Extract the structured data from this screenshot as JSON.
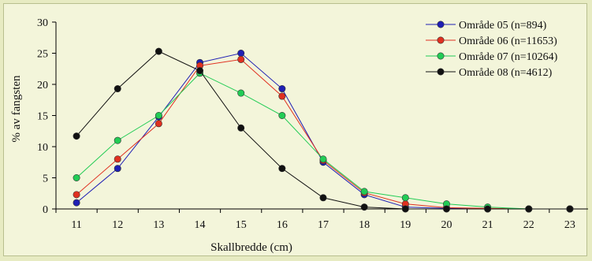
{
  "chart_data": {
    "type": "line",
    "title": "",
    "xlabel": "Skallbredde (cm)",
    "ylabel": "% av fangsten",
    "x": [
      11,
      12,
      13,
      14,
      15,
      16,
      17,
      18,
      19,
      20,
      21,
      22,
      23
    ],
    "ylim": [
      0,
      30
    ],
    "yticks": [
      0,
      5,
      10,
      15,
      20,
      25,
      30
    ],
    "grid": false,
    "legend": "top-right",
    "series": [
      {
        "name": "Område 05 (n=894)",
        "color": "#1f1fb4",
        "values": [
          1.0,
          6.5,
          14.8,
          23.5,
          25.0,
          19.3,
          7.5,
          2.3,
          0.3,
          0.1,
          0.0,
          0.0,
          0.0
        ]
      },
      {
        "name": "Område 06 (n=11653)",
        "color": "#e03020",
        "values": [
          2.3,
          8.0,
          13.7,
          23.0,
          24.0,
          18.1,
          7.8,
          2.6,
          0.8,
          0.2,
          0.1,
          0.0,
          0.0
        ]
      },
      {
        "name": "Område 07 (n=10264)",
        "color": "#22cc55",
        "values": [
          5.0,
          11.0,
          15.0,
          21.8,
          18.6,
          15.0,
          8.0,
          2.8,
          1.8,
          0.8,
          0.3,
          0.0,
          0.0
        ]
      },
      {
        "name": "Område 08 (n=4612)",
        "color": "#111111",
        "values": [
          11.7,
          19.3,
          25.3,
          22.2,
          13.0,
          6.5,
          1.8,
          0.3,
          0.0,
          0.0,
          0.0,
          0.0,
          0.0
        ]
      }
    ]
  }
}
